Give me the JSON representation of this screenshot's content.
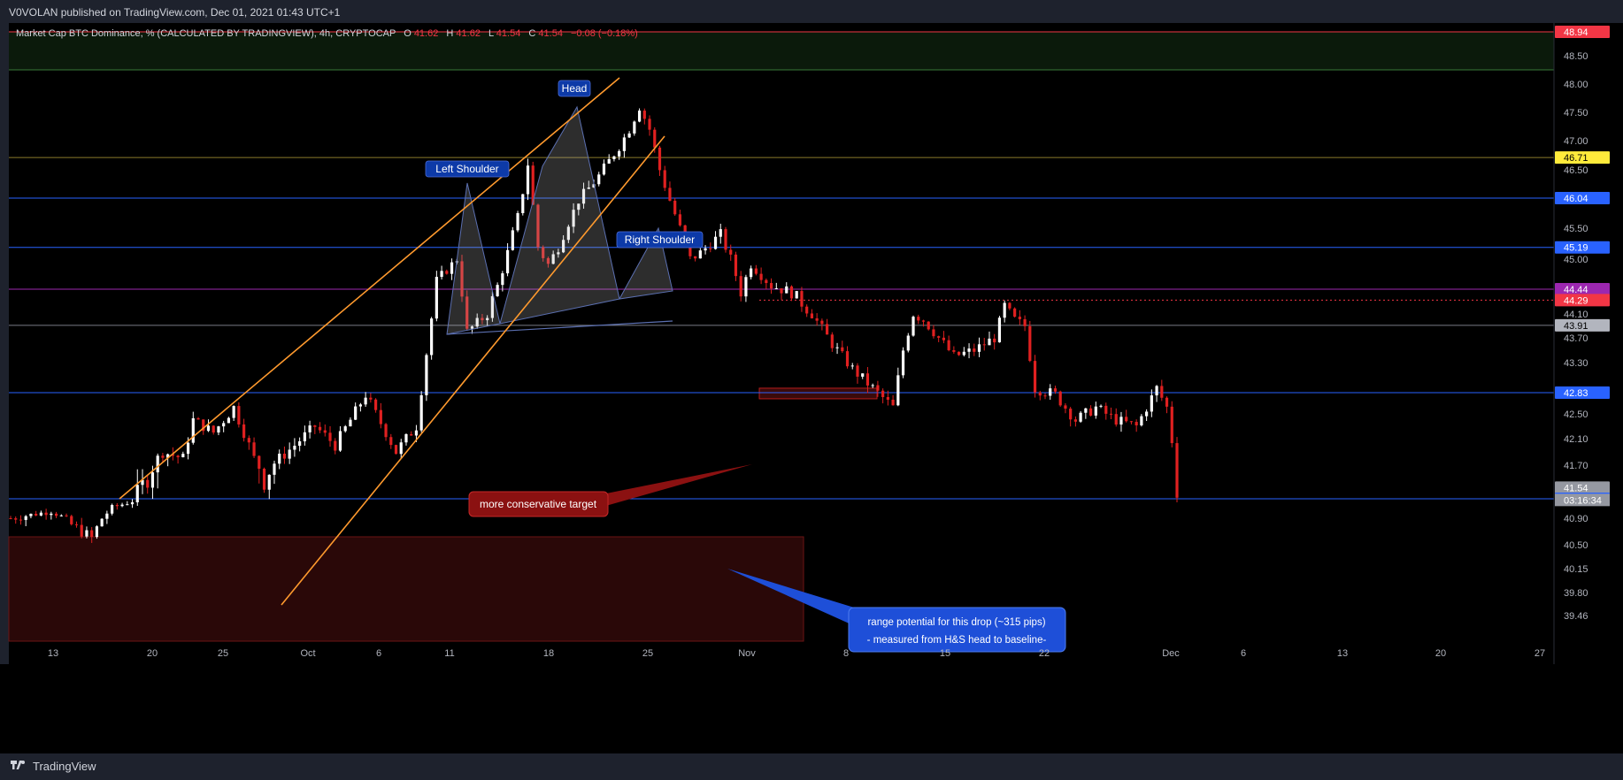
{
  "header": {
    "published_line": "V0VOLAN published on TradingView.com, Dec 01, 2021 01:43 UTC+1"
  },
  "footer": {
    "brand": "TradingView"
  },
  "legend": {
    "title": "Market Cap BTC Dominance, % (CALCULATED BY TRADINGVIEW), 4h, CRYPTOCAP",
    "o_label": "O",
    "o_value": "41.62",
    "h_label": "H",
    "h_value": "41.62",
    "l_label": "L",
    "l_value": "41.54",
    "c_label": "C",
    "c_value": "41.54",
    "change": "−0.08 (−0.18%)"
  },
  "colors": {
    "background": "#000000",
    "bull_candle": "#ffffff",
    "bear_candle": "#e02020",
    "trendline": "#ff9a2e",
    "level_blue": "#2962ff",
    "level_purple": "#9c27b0",
    "level_red": "#f23645",
    "level_olive": "#8a7a2a",
    "zone_green": "#0b1a0b",
    "zone_red": "#2a0808",
    "label_blue": "#0d3aa8"
  },
  "annotations": {
    "head": "Head",
    "left_shoulder": "Left Shoulder",
    "right_shoulder": "Right Shoulder",
    "conservative_target": "more conservative target",
    "range_line1": "range potential for this drop (~315 pips)",
    "range_line2": "- measured from H&S head to baseline-"
  },
  "chart_data": {
    "type": "candlestick",
    "title": "Market Cap BTC Dominance, % (CALCULATED BY TRADINGVIEW)",
    "timeframe": "4h",
    "source": "CRYPTOCAP",
    "ylim": [
      39.46,
      48.94
    ],
    "y_ticks": [
      "48.50",
      "48.00",
      "47.50",
      "47.00",
      "46.50",
      "45.50",
      "45.00",
      "44.10",
      "43.70",
      "43.30",
      "42.50",
      "42.10",
      "41.70",
      "40.90",
      "40.50",
      "40.15",
      "39.80",
      "39.46"
    ],
    "x_ticks": [
      "13",
      "20",
      "25",
      "Oct",
      "6",
      "11",
      "18",
      "25",
      "Nov",
      "8",
      "15",
      "22",
      "Dec",
      "6",
      "13",
      "20",
      "27"
    ],
    "price_badges": [
      {
        "value": "48.94",
        "color": "#f23645"
      },
      {
        "value": "46.71",
        "color": "#ffeb3b"
      },
      {
        "value": "46.04",
        "color": "#2962ff"
      },
      {
        "value": "45.19",
        "color": "#2962ff"
      },
      {
        "value": "44.44",
        "color": "#9c27b0"
      },
      {
        "value": "44.29",
        "color": "#f23645"
      },
      {
        "value": "43.91",
        "color": "#b2b5be"
      },
      {
        "value": "42.83",
        "color": "#2962ff"
      },
      {
        "value": "41.54",
        "color": "#9598a1"
      },
      {
        "value": "41.46",
        "color": "#2962ff"
      }
    ],
    "countdown": "03:16:34",
    "horizontal_levels": [
      {
        "value": 48.94,
        "color": "#f23645"
      },
      {
        "value": 48.25,
        "color": "#3a7a3a"
      },
      {
        "value": 46.71,
        "color": "#8a7a2a"
      },
      {
        "value": 46.04,
        "color": "#2962ff"
      },
      {
        "value": 45.19,
        "color": "#2962ff"
      },
      {
        "value": 44.44,
        "color": "#9c27b0"
      },
      {
        "value": 43.91,
        "color": "#787b86"
      },
      {
        "value": 42.83,
        "color": "#2962ff"
      },
      {
        "value": 41.46,
        "color": "#2962ff"
      }
    ],
    "close_path": [
      [
        0,
        40.9
      ],
      [
        4,
        41.1
      ],
      [
        6,
        40.8
      ],
      [
        8,
        40.6
      ],
      [
        10,
        41.2
      ],
      [
        12,
        41.4
      ],
      [
        14,
        41.7
      ],
      [
        15,
        41.9
      ],
      [
        17,
        41.8
      ],
      [
        18,
        42.4
      ],
      [
        20,
        42.2
      ],
      [
        22,
        42.6
      ],
      [
        24,
        41.8
      ],
      [
        25,
        41.6
      ],
      [
        28,
        42.0
      ],
      [
        30,
        42.3
      ],
      [
        32,
        42.0
      ],
      [
        35,
        42.8
      ],
      [
        36,
        42.5
      ],
      [
        38,
        41.9
      ],
      [
        40,
        42.3
      ],
      [
        42,
        44.6
      ],
      [
        44,
        45.0
      ],
      [
        45,
        43.8
      ],
      [
        47,
        44.1
      ],
      [
        48,
        44.5
      ],
      [
        50,
        45.7
      ],
      [
        51,
        46.6
      ],
      [
        52,
        45.2
      ],
      [
        53,
        44.9
      ],
      [
        54,
        45.2
      ],
      [
        56,
        46.0
      ],
      [
        58,
        46.4
      ],
      [
        60,
        46.9
      ],
      [
        61,
        47.2
      ],
      [
        62,
        47.6
      ],
      [
        63,
        47.2
      ],
      [
        64,
        46.5
      ],
      [
        66,
        45.5
      ],
      [
        67,
        45.0
      ],
      [
        68,
        45.1
      ],
      [
        70,
        45.4
      ],
      [
        71,
        45.0
      ],
      [
        72,
        44.4
      ],
      [
        73,
        44.9
      ],
      [
        75,
        44.5
      ],
      [
        77,
        44.4
      ],
      [
        79,
        44.1
      ],
      [
        81,
        43.6
      ],
      [
        83,
        43.2
      ],
      [
        85,
        42.9
      ],
      [
        87,
        42.6
      ],
      [
        88,
        43.5
      ],
      [
        89,
        44.1
      ],
      [
        90,
        44.0
      ],
      [
        91,
        43.8
      ],
      [
        93,
        43.4
      ],
      [
        95,
        43.5
      ],
      [
        97,
        43.7
      ],
      [
        98,
        44.2
      ],
      [
        99,
        44.0
      ],
      [
        100,
        43.9
      ],
      [
        101,
        42.9
      ],
      [
        103,
        42.8
      ],
      [
        105,
        42.4
      ],
      [
        107,
        42.6
      ],
      [
        109,
        42.4
      ],
      [
        111,
        42.3
      ],
      [
        112,
        42.6
      ],
      [
        113,
        42.9
      ],
      [
        114,
        42.6
      ],
      [
        115,
        41.54
      ]
    ],
    "x_domain": [
      0,
      115
    ]
  }
}
